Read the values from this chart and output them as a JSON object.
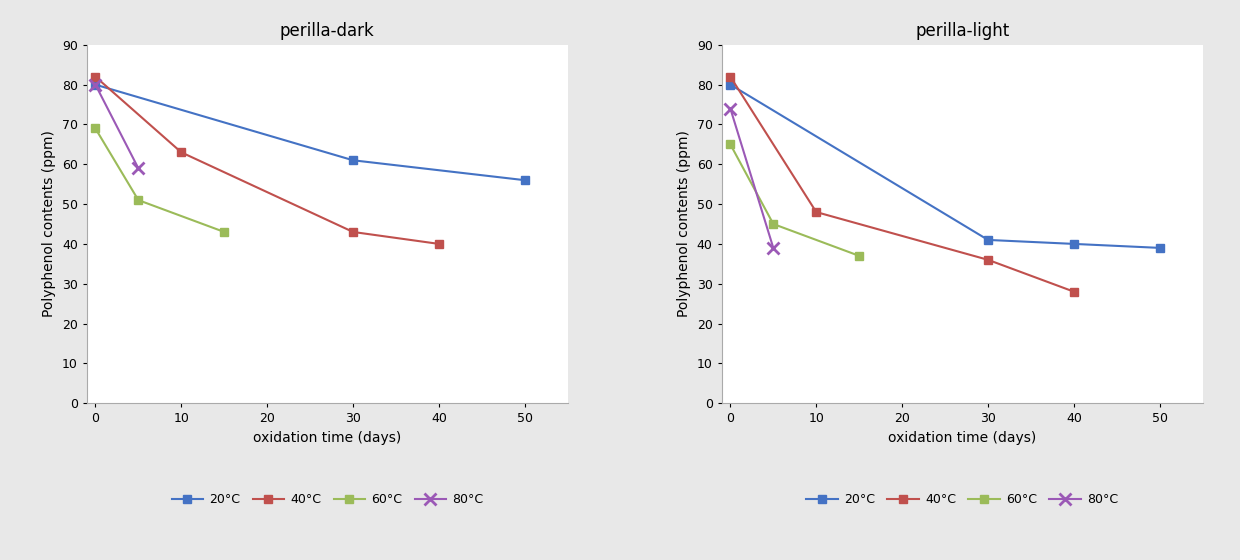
{
  "left_title": "perilla-dark",
  "right_title": "perilla-light",
  "xlabel": "oxidation time (days)",
  "ylabel": "Polyphenol contents (ppm)",
  "ylim": [
    0,
    90
  ],
  "yticks": [
    0,
    10,
    20,
    30,
    40,
    50,
    60,
    70,
    80,
    90
  ],
  "xlim": [
    -1,
    55
  ],
  "xticks": [
    0,
    10,
    20,
    30,
    40,
    50
  ],
  "series": [
    {
      "label": "20°C",
      "color": "#4472c4",
      "marker": "s"
    },
    {
      "label": "40°C",
      "color": "#c0504d",
      "marker": "s"
    },
    {
      "label": "60°C",
      "color": "#9bbb59",
      "marker": "s"
    },
    {
      "label": "80°C",
      "color": "#9b59b6",
      "marker": "x"
    }
  ],
  "dark_data": [
    {
      "x": [
        0,
        30,
        50
      ],
      "y": [
        80,
        61,
        56
      ]
    },
    {
      "x": [
        0,
        10,
        30,
        40
      ],
      "y": [
        82,
        63,
        43,
        40
      ]
    },
    {
      "x": [
        0,
        5,
        15
      ],
      "y": [
        69,
        51,
        43
      ]
    },
    {
      "x": [
        0,
        5
      ],
      "y": [
        80,
        59
      ]
    }
  ],
  "light_data": [
    {
      "x": [
        0,
        30,
        40,
        50
      ],
      "y": [
        80,
        41,
        40,
        39
      ]
    },
    {
      "x": [
        0,
        10,
        30,
        40
      ],
      "y": [
        82,
        48,
        36,
        28
      ]
    },
    {
      "x": [
        0,
        5,
        15
      ],
      "y": [
        65,
        45,
        37
      ]
    },
    {
      "x": [
        0,
        5
      ],
      "y": [
        74,
        39
      ]
    }
  ],
  "background_color": "#ffffff",
  "outer_bg": "#e8e8e8",
  "title_fontsize": 12,
  "axis_label_fontsize": 10,
  "tick_fontsize": 9,
  "legend_fontsize": 9,
  "line_width": 1.5,
  "marker_size": 6
}
